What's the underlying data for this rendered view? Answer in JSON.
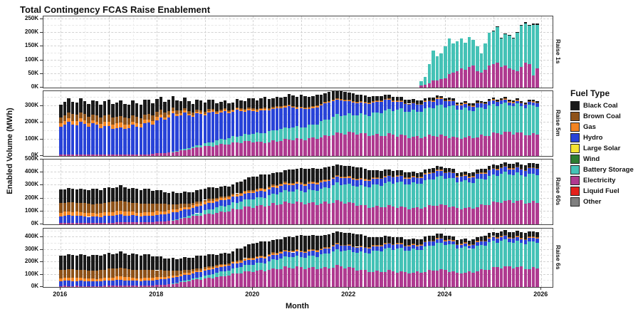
{
  "title": "Total Contingency FCAS Raise Enablement",
  "axes": {
    "x_label": "Month",
    "y_label": "Enabled Volume (MWh)",
    "x_tick_years": [
      2016,
      2018,
      2020,
      2022,
      2024,
      2026
    ]
  },
  "legend": {
    "title": "Fuel Type",
    "items": [
      {
        "label": "Black Coal",
        "color": "#1A1A1A"
      },
      {
        "label": "Brown Coal",
        "color": "#8E5219"
      },
      {
        "label": "Gas",
        "color": "#F28422"
      },
      {
        "label": "Hydro",
        "color": "#2843D8"
      },
      {
        "label": "Large Solar",
        "color": "#F5E332"
      },
      {
        "label": "Wind",
        "color": "#2E7D32"
      },
      {
        "label": "Battery Storage",
        "color": "#44C2B6"
      },
      {
        "label": "Electricity",
        "color": "#AF3A90"
      },
      {
        "label": "Liquid Fuel",
        "color": "#E3211C"
      },
      {
        "label": "Other",
        "color": "#7F7F7F"
      }
    ]
  },
  "chart_data": {
    "type": "bar",
    "stacked": true,
    "value_unit": "thousand MWh (axis shows K)",
    "x_start": "2016-01",
    "x_end": "2025-12",
    "months_total": 120,
    "anchor_resolution": "quarterly (2016Q1..2025Q4), rendered monthly by interpolation",
    "stack_order": [
      "Electricity",
      "Battery Storage",
      "Hydro",
      "Gas",
      "Brown Coal",
      "Black Coal"
    ],
    "panels": [
      {
        "name": "Raise 1s",
        "ymax": 260,
        "yticks": [
          0,
          50,
          100,
          150,
          200,
          250
        ],
        "ytick_minor_step": 25,
        "start_month_index": 90,
        "monthly_series": {
          "Electricity": [
            8,
            10,
            15,
            25,
            25,
            30,
            35,
            50,
            55,
            60,
            70,
            65,
            75,
            80,
            60,
            55,
            65,
            80,
            85,
            90,
            75,
            80,
            70,
            65,
            60,
            75,
            90,
            85,
            45,
            70
          ],
          "Battery Storage": [
            15,
            30,
            70,
            110,
            90,
            95,
            115,
            130,
            105,
            110,
            110,
            100,
            110,
            95,
            90,
            70,
            95,
            120,
            120,
            130,
            105,
            115,
            120,
            115,
            140,
            150,
            145,
            140,
            185,
            160
          ],
          "Black Coal": [
            0,
            0,
            0,
            0,
            0,
            0,
            0,
            0,
            0,
            0,
            0,
            0,
            0,
            0,
            0,
            0,
            0,
            0,
            2,
            3,
            2,
            2,
            2,
            2,
            3,
            4,
            3,
            3,
            5,
            4
          ]
        }
      },
      {
        "name": "Raise 5m",
        "ymax": 390,
        "yticks": [
          0,
          100,
          200,
          300
        ],
        "ytick_minor_step": 50,
        "anchors_quarterly": {
          "Electricity": [
            8,
            8,
            8,
            8,
            8,
            8,
            10,
            10,
            15,
            20,
            30,
            45,
            60,
            65,
            70,
            80,
            90,
            85,
            90,
            95,
            100,
            110,
            120,
            130,
            135,
            140,
            130,
            125,
            120,
            115,
            120,
            125,
            115,
            105,
            115,
            125,
            130,
            135,
            140,
            135
          ],
          "Battery Storage": [
            0,
            0,
            0,
            0,
            0,
            0,
            0,
            0,
            0,
            0,
            5,
            10,
            20,
            30,
            35,
            40,
            50,
            60,
            65,
            70,
            75,
            85,
            95,
            105,
            110,
            120,
            130,
            140,
            150,
            160,
            165,
            170,
            175,
            180,
            175,
            170,
            165,
            168,
            172,
            175
          ],
          "Hydro": [
            170,
            185,
            195,
            180,
            160,
            150,
            170,
            185,
            195,
            205,
            215,
            200,
            180,
            160,
            150,
            155,
            140,
            130,
            120,
            125,
            115,
            100,
            95,
            90,
            80,
            70,
            65,
            60,
            50,
            45,
            40,
            38,
            35,
            30,
            28,
            26,
            25,
            22,
            20,
            20
          ],
          "Gas": [
            20,
            25,
            22,
            18,
            25,
            28,
            22,
            20,
            18,
            15,
            12,
            10,
            10,
            8,
            8,
            8,
            8,
            7,
            7,
            6,
            6,
            6,
            5,
            5,
            5,
            4,
            4,
            4,
            3,
            3,
            3,
            3,
            3,
            2,
            2,
            2,
            2,
            2,
            2,
            2
          ],
          "Brown Coal": [
            35,
            40,
            38,
            35,
            40,
            45,
            38,
            35,
            30,
            25,
            20,
            15,
            12,
            10,
            8,
            8,
            8,
            7,
            6,
            6,
            6,
            5,
            5,
            5,
            4,
            4,
            3,
            3,
            3,
            2,
            2,
            2,
            2,
            2,
            2,
            2,
            2,
            2,
            2,
            2
          ],
          "Black Coal": [
            85,
            80,
            75,
            80,
            85,
            90,
            85,
            80,
            75,
            70,
            60,
            55,
            55,
            50,
            45,
            50,
            55,
            60,
            55,
            60,
            65,
            60,
            55,
            50,
            45,
            40,
            30,
            25,
            22,
            20,
            18,
            15,
            12,
            10,
            10,
            10,
            10,
            10,
            10,
            8
          ]
        }
      },
      {
        "name": "Raise 60s",
        "ymax": 500,
        "yticks": [
          0,
          100,
          200,
          300,
          400,
          500
        ],
        "ytick_minor_step": 50,
        "anchors_quarterly": {
          "Electricity": [
            12,
            12,
            12,
            12,
            12,
            14,
            15,
            15,
            20,
            25,
            40,
            60,
            80,
            90,
            100,
            120,
            140,
            150,
            155,
            160,
            165,
            170,
            165,
            170,
            160,
            150,
            140,
            135,
            130,
            125,
            135,
            150,
            140,
            120,
            130,
            150,
            160,
            170,
            180,
            175
          ],
          "Battery Storage": [
            0,
            0,
            0,
            0,
            0,
            0,
            0,
            0,
            0,
            0,
            5,
            15,
            30,
            40,
            45,
            55,
            65,
            70,
            80,
            90,
            95,
            105,
            115,
            130,
            140,
            155,
            165,
            170,
            185,
            195,
            200,
            205,
            210,
            215,
            210,
            205,
            205,
            210,
            215,
            220
          ],
          "Hydro": [
            50,
            55,
            52,
            48,
            50,
            55,
            52,
            50,
            52,
            55,
            58,
            55,
            50,
            48,
            45,
            48,
            50,
            48,
            46,
            48,
            50,
            48,
            46,
            48,
            50,
            48,
            46,
            45,
            45,
            44,
            44,
            44,
            42,
            40,
            40,
            42,
            44,
            45,
            45,
            45
          ],
          "Gas": [
            28,
            32,
            30,
            26,
            30,
            34,
            30,
            28,
            26,
            22,
            20,
            18,
            18,
            15,
            14,
            14,
            14,
            12,
            12,
            10,
            10,
            9,
            9,
            8,
            8,
            7,
            6,
            6,
            5,
            5,
            5,
            5,
            4,
            4,
            4,
            4,
            4,
            4,
            4,
            4
          ],
          "Brown Coal": [
            70,
            75,
            72,
            68,
            72,
            78,
            72,
            68,
            60,
            50,
            35,
            20,
            15,
            12,
            10,
            10,
            10,
            8,
            8,
            7,
            7,
            6,
            6,
            5,
            5,
            5,
            4,
            4,
            4,
            3,
            3,
            3,
            3,
            3,
            3,
            3,
            3,
            3,
            3,
            3
          ],
          "Black Coal": [
            115,
            110,
            105,
            108,
            112,
            118,
            112,
            108,
            100,
            95,
            90,
            85,
            85,
            80,
            78,
            85,
            95,
            100,
            95,
            100,
            105,
            100,
            95,
            90,
            85,
            80,
            60,
            50,
            40,
            35,
            32,
            30,
            28,
            25,
            25,
            26,
            28,
            30,
            32,
            30
          ]
        }
      },
      {
        "name": "Raise 6s",
        "ymax": 470,
        "yticks": [
          0,
          100,
          200,
          300,
          400
        ],
        "ytick_minor_step": 50,
        "anchors_quarterly": {
          "Electricity": [
            8,
            8,
            8,
            8,
            10,
            10,
            10,
            12,
            15,
            20,
            35,
            55,
            70,
            80,
            90,
            110,
            130,
            140,
            145,
            150,
            155,
            160,
            155,
            160,
            150,
            140,
            130,
            125,
            120,
            115,
            125,
            140,
            130,
            110,
            120,
            140,
            150,
            155,
            160,
            155
          ],
          "Battery Storage": [
            0,
            0,
            0,
            0,
            0,
            0,
            0,
            0,
            0,
            0,
            5,
            12,
            25,
            35,
            40,
            50,
            60,
            65,
            75,
            85,
            90,
            100,
            110,
            125,
            135,
            150,
            160,
            170,
            180,
            190,
            195,
            200,
            205,
            210,
            205,
            200,
            200,
            205,
            210,
            215
          ],
          "Hydro": [
            40,
            42,
            40,
            38,
            40,
            44,
            42,
            40,
            42,
            44,
            46,
            44,
            40,
            38,
            36,
            38,
            40,
            38,
            37,
            38,
            40,
            38,
            37,
            38,
            40,
            38,
            36,
            35,
            35,
            34,
            34,
            34,
            32,
            30,
            30,
            32,
            34,
            35,
            35,
            35
          ],
          "Gas": [
            22,
            26,
            24,
            20,
            24,
            28,
            24,
            22,
            20,
            18,
            16,
            14,
            14,
            12,
            11,
            11,
            11,
            10,
            10,
            8,
            8,
            7,
            7,
            7,
            6,
            6,
            5,
            5,
            4,
            4,
            4,
            4,
            4,
            3,
            3,
            3,
            3,
            3,
            3,
            3
          ],
          "Brown Coal": [
            65,
            70,
            68,
            64,
            68,
            74,
            68,
            64,
            56,
            46,
            32,
            18,
            14,
            11,
            9,
            9,
            9,
            8,
            7,
            7,
            6,
            6,
            5,
            5,
            5,
            4,
            4,
            4,
            3,
            3,
            3,
            3,
            3,
            3,
            3,
            3,
            3,
            3,
            3,
            3
          ],
          "Black Coal": [
            125,
            120,
            115,
            118,
            122,
            128,
            122,
            118,
            110,
            105,
            100,
            95,
            95,
            90,
            88,
            95,
            105,
            110,
            105,
            110,
            115,
            110,
            105,
            100,
            95,
            90,
            70,
            60,
            50,
            45,
            40,
            38,
            35,
            32,
            32,
            34,
            36,
            40,
            44,
            42
          ]
        }
      }
    ]
  }
}
